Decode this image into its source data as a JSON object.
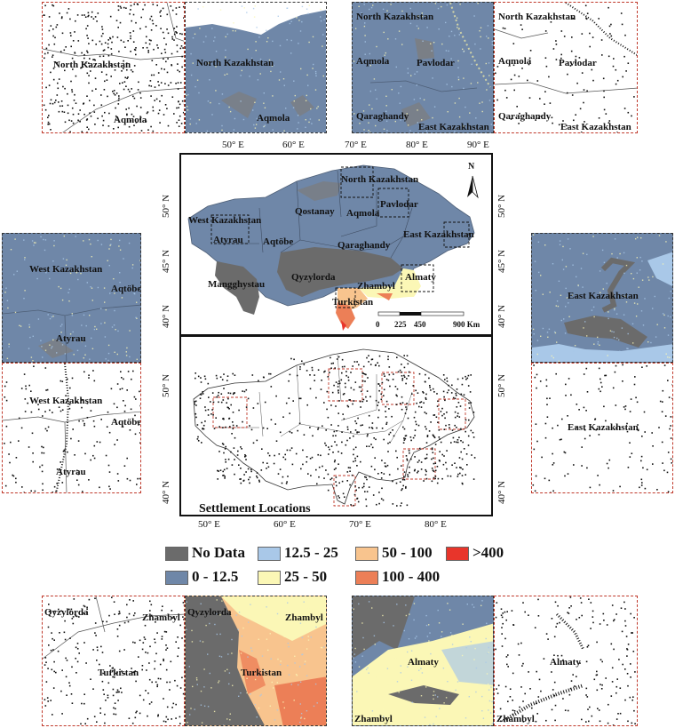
{
  "colors": {
    "no_data": "#6b6b6b",
    "c0_12_5": "#6f87a8",
    "c12_5_25": "#a9c8e8",
    "c25_50": "#fbf7b6",
    "c50_100": "#f8c48e",
    "c100_400": "#ec7f57",
    "c_gt_400": "#e8352b",
    "panel_border": "#c0392b"
  },
  "legend": [
    {
      "label": "No Data",
      "color": "#6b6b6b"
    },
    {
      "label": "12.5 - 25",
      "color": "#a9c8e8"
    },
    {
      "label": "50 - 100",
      "color": "#f8c48e"
    },
    {
      "label": ">400",
      "color": "#e8352b"
    },
    {
      "label": "0 - 12.5",
      "color": "#6f87a8"
    },
    {
      "label": "25 - 50",
      "color": "#fbf7b6"
    },
    {
      "label": "100 - 400",
      "color": "#ec7f57"
    }
  ],
  "main_map": {
    "regions": [
      "North Kazakhstan",
      "Pavlodar",
      "Qostanay",
      "Aqmola",
      "West Kazakhstan",
      "Atyrau",
      "Aqtöbe",
      "East Kazakhstan",
      "Qaraghandy",
      "Mangghystau",
      "Qyzylorda",
      "Zhambyl",
      "Almaty",
      "Turkistan"
    ],
    "north_arrow": "N",
    "scale": [
      "0",
      "225",
      "450",
      "900 Km"
    ],
    "lon_ticks": [
      "50° E",
      "60° E",
      "70° E",
      "80° E",
      "90° E"
    ],
    "lat_ticks": [
      "50° N",
      "45° N",
      "40° N"
    ]
  },
  "settlement_map": {
    "title": "Settlement Locations",
    "lon_ticks": [
      "50° E",
      "60° E",
      "70° E",
      "80° E"
    ],
    "lat_ticks": [
      "50° N",
      "40° N"
    ]
  },
  "insets": {
    "nw_points": {
      "labels": [
        "North Kazakhstan",
        "Aqmola"
      ]
    },
    "nw_raster": {
      "labels": [
        "North Kazakhstan",
        "Aqmola"
      ]
    },
    "ne_raster": {
      "labels": [
        "North Kazakhstan",
        "Aqmola",
        "Pavlodar",
        "Qaraghandy",
        "East Kazakhstan"
      ]
    },
    "ne_points": {
      "labels": [
        "North Kazakhstan",
        "Aqmola",
        "Pavlodar",
        "Qaraghandy",
        "East Kazakhstan"
      ]
    },
    "w_raster": {
      "labels": [
        "West Kazakhstan",
        "Aqtöbe",
        "Atyrau"
      ]
    },
    "w_points": {
      "labels": [
        "West Kazakhstan",
        "Aqtöbe",
        "Atyrau"
      ]
    },
    "e_raster": {
      "labels": [
        "East Kazakhstan"
      ]
    },
    "e_points": {
      "labels": [
        "East Kazakhstan"
      ]
    },
    "sw_points": {
      "labels": [
        "Qyzylorda",
        "Zhambyl",
        "Turkistan"
      ]
    },
    "sw_raster": {
      "labels": [
        "Qyzylorda",
        "Zhambyl",
        "Turkistan"
      ]
    },
    "se_raster": {
      "labels": [
        "Almaty",
        "Zhambyl"
      ]
    },
    "se_points": {
      "labels": [
        "Almaty",
        "Zhambyl"
      ]
    }
  }
}
